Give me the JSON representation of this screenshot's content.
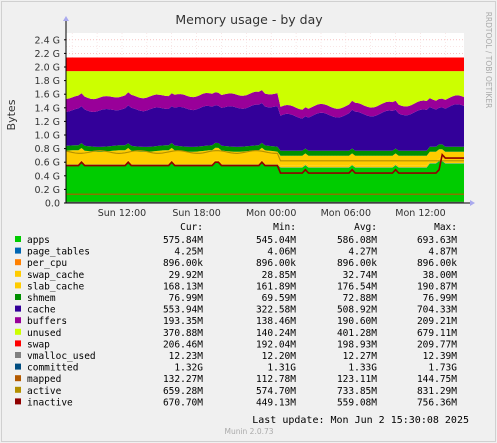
{
  "chart_data": {
    "type": "area",
    "title": "Memory usage - by day",
    "ylabel": "Bytes",
    "side_label": "RRDTOOL / TOBI OETIKER",
    "footer": "Munin 2.0.73",
    "last_update": "Last update: Mon Jun  2 15:30:08 2025",
    "yticks": [
      "0.0",
      "0.2 G",
      "0.4 G",
      "0.6 G",
      "0.8 G",
      "1.0 G",
      "1.2 G",
      "1.4 G",
      "1.6 G",
      "1.8 G",
      "2.0 G",
      "2.2 G",
      "2.4 G"
    ],
    "ylim": [
      0,
      2.5
    ],
    "xticks": [
      {
        "label": "Sun 12:00",
        "hour": 12
      },
      {
        "label": "Sun 18:00",
        "hour": 18
      },
      {
        "label": "Mon 00:00",
        "hour": 24
      },
      {
        "label": "Mon 06:00",
        "hour": 30
      },
      {
        "label": "Mon 12:00",
        "hour": 36
      }
    ],
    "xlim_hours": [
      7.5,
      39.5
    ],
    "grid": true,
    "columns": [
      "Cur:",
      "Min:",
      "Avg:",
      "Max:"
    ],
    "series": [
      {
        "name": "apps",
        "color": "#00cc00",
        "cur": "575.84M",
        "min": "545.04M",
        "avg": "586.08M",
        "max": "693.63M"
      },
      {
        "name": "page_tables",
        "color": "#0066b3",
        "cur": "4.25M",
        "min": "4.06M",
        "avg": "4.27M",
        "max": "4.87M"
      },
      {
        "name": "per_cpu",
        "color": "#ff8000",
        "cur": "896.00k",
        "min": "896.00k",
        "avg": "896.00k",
        "max": "896.00k"
      },
      {
        "name": "swap_cache",
        "color": "#ffcc00",
        "cur": "29.92M",
        "min": "28.85M",
        "avg": "32.74M",
        "max": "38.00M"
      },
      {
        "name": "slab_cache",
        "color": "#ffcc00",
        "cur": "168.13M",
        "min": "161.89M",
        "avg": "176.54M",
        "max": "190.87M"
      },
      {
        "name": "shmem",
        "color": "#008f00",
        "cur": "76.99M",
        "min": "69.59M",
        "avg": "72.88M",
        "max": "76.99M"
      },
      {
        "name": "cache",
        "color": "#330099",
        "cur": "553.94M",
        "min": "322.58M",
        "avg": "508.92M",
        "max": "704.33M"
      },
      {
        "name": "buffers",
        "color": "#990099",
        "cur": "193.35M",
        "min": "138.46M",
        "avg": "190.60M",
        "max": "209.21M"
      },
      {
        "name": "unused",
        "color": "#ccff00",
        "cur": "370.88M",
        "min": "140.24M",
        "avg": "401.28M",
        "max": "679.11M"
      },
      {
        "name": "swap",
        "color": "#ff0000",
        "cur": "206.46M",
        "min": "192.04M",
        "avg": "198.93M",
        "max": "209.77M"
      },
      {
        "name": "vmalloc_used",
        "color": "#808080",
        "cur": "12.23M",
        "min": "12.20M",
        "avg": "12.27M",
        "max": "12.39M"
      },
      {
        "name": "committed",
        "color": "#004d80",
        "cur": "1.32G",
        "min": "1.31G",
        "avg": "1.33G",
        "max": "1.73G"
      },
      {
        "name": "mapped",
        "color": "#b35a00",
        "cur": "132.27M",
        "min": "112.78M",
        "avg": "123.11M",
        "max": "144.75M"
      },
      {
        "name": "active",
        "color": "#b38f00",
        "cur": "659.28M",
        "min": "574.70M",
        "avg": "733.85M",
        "max": "831.29M"
      },
      {
        "name": "inactive",
        "color": "#8f0000",
        "cur": "670.70M",
        "min": "449.13M",
        "avg": "559.08M",
        "max": "756.36M"
      }
    ]
  }
}
